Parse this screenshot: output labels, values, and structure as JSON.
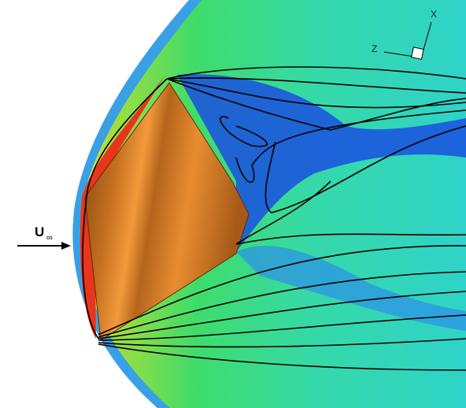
{
  "axes": {
    "x": "X",
    "z": "Z"
  },
  "freestream": {
    "symbol": "U",
    "subscript": "∞"
  }
}
